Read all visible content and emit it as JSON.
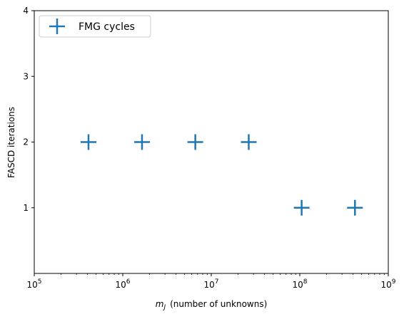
{
  "chart_data": {
    "type": "scatter",
    "xscale": "log",
    "xlim": [
      100000,
      1000000000
    ],
    "ylim": [
      0,
      4
    ],
    "x_ticks": [
      {
        "base": "10",
        "exp": "5"
      },
      {
        "base": "10",
        "exp": "6"
      },
      {
        "base": "10",
        "exp": "7"
      },
      {
        "base": "10",
        "exp": "8"
      },
      {
        "base": "10",
        "exp": "9"
      }
    ],
    "x_tick_values": [
      100000,
      1000000,
      10000000,
      100000000,
      1000000000
    ],
    "y_ticks": [
      "1",
      "2",
      "3",
      "4"
    ],
    "y_tick_values": [
      1,
      2,
      3,
      4
    ],
    "xlabel": {
      "symbol": "m",
      "subscript": "J",
      "text": "(number of unknowns)"
    },
    "ylabel": "FASCD iterations",
    "legend_position": "upper-left",
    "grid": false,
    "series": [
      {
        "name": "FMG cycles",
        "marker": "plus",
        "color": "#1f77b4",
        "x": [
          410000,
          1650000,
          6600000,
          26500000,
          105000000,
          420000000
        ],
        "y": [
          2,
          2,
          2,
          2,
          1,
          1
        ]
      }
    ]
  }
}
